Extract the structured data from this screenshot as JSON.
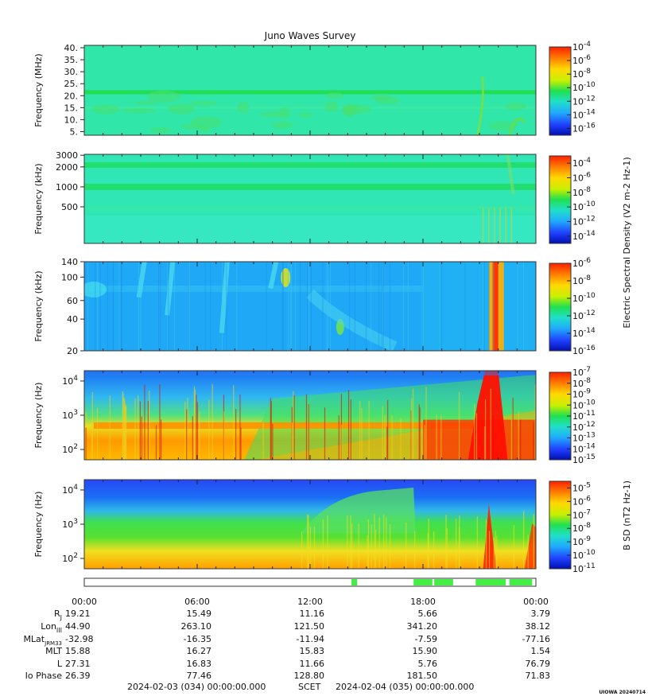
{
  "chart_data": {
    "type": "heatmap",
    "title": "Juno Waves Survey",
    "panels": [
      {
        "id": "p1",
        "ylabel": "Frequency (MHz)",
        "yscale": "linear",
        "yrange": [
          3.5,
          41
        ],
        "yticks": [
          "40.",
          "35.",
          "30.",
          "25.",
          "20.",
          "15.",
          "10.",
          "5."
        ],
        "ytick_values": [
          40,
          35,
          30,
          25,
          20,
          15,
          10,
          5
        ],
        "colorbar_labels": [
          "10-4",
          "10-6",
          "10-8",
          "10-10",
          "10-12",
          "10-14",
          "10-16"
        ],
        "colorbar_range_log10": [
          -4,
          -17
        ]
      },
      {
        "id": "p2",
        "ylabel": "Frequency (kHz)",
        "yscale": "log",
        "yrange": [
          140,
          3100
        ],
        "yticks": [
          "3000",
          "2000",
          "1000",
          "500"
        ],
        "ytick_values": [
          3000,
          2000,
          1000,
          500
        ],
        "colorbar_labels": [
          "10-4",
          "10-6",
          "10-8",
          "10-10",
          "10-12",
          "10-14"
        ],
        "colorbar_range_log10": [
          -3,
          -15
        ]
      },
      {
        "id": "p3",
        "ylabel": "Frequency (kHz)",
        "yscale": "log",
        "yrange": [
          20,
          140
        ],
        "yticks": [
          "140",
          "100",
          "60",
          "40",
          "20"
        ],
        "ytick_values": [
          140,
          100,
          60,
          40,
          20
        ],
        "colorbar_labels": [
          "10-6",
          "10-8",
          "10-10",
          "10-12",
          "10-14",
          "10-16"
        ],
        "colorbar_range_log10": [
          -6,
          -16
        ]
      },
      {
        "id": "p4",
        "ylabel": "Frequency (Hz)",
        "yscale": "log",
        "yrange": [
          50,
          20000
        ],
        "yticks": [
          "10^4",
          "10^3",
          "10^2"
        ],
        "ytick_values": [
          10000,
          1000,
          100
        ],
        "colorbar_labels": [
          "10-7",
          "10-8",
          "10-9",
          "10-10",
          "10-11",
          "10-12",
          "10-13",
          "10-14",
          "10-15"
        ],
        "colorbar_range_log10": [
          -7,
          -15
        ]
      },
      {
        "id": "p5",
        "ylabel": "Frequency (Hz)",
        "yscale": "log",
        "yrange": [
          50,
          20000
        ],
        "yticks": [
          "10^4",
          "10^3",
          "10^2"
        ],
        "ytick_values": [
          10000,
          1000,
          100
        ],
        "colorbar_labels": [
          "10-5",
          "10-6",
          "10-7",
          "10-8",
          "10-9",
          "10-10",
          "10-11"
        ],
        "colorbar_range_log10": [
          -4.5,
          -11
        ]
      }
    ],
    "colorbar_title_efield": "Electric Spectral Density (V2 m-2 Hz-1)",
    "colorbar_title_bfield": "B SD (nT2 Hz-1)",
    "x_axis": {
      "start": "2024-02-03 (034) 00:00:00.000",
      "end": "2024-02-04 (035) 00:00:00.000",
      "time_label": "SCET",
      "ticks": [
        "00:00",
        "06:00",
        "12:00",
        "18:00",
        "00:00"
      ]
    },
    "ephemeris": {
      "rows": [
        {
          "label": "RJ",
          "values": [
            "19.21",
            "15.49",
            "11.16",
            "5.66",
            "3.79"
          ]
        },
        {
          "label": "LonIII",
          "values": [
            "44.90",
            "263.10",
            "121.50",
            "341.20",
            "38.12"
          ]
        },
        {
          "label": "MLatJRM33",
          "values": [
            "-32.98",
            "-16.35",
            "-11.94",
            "-7.59",
            "-77.16"
          ]
        },
        {
          "label": "MLT",
          "values": [
            "15.88",
            "16.27",
            "15.83",
            "15.90",
            "1.54"
          ]
        },
        {
          "label": "L",
          "values": [
            "27.31",
            "16.83",
            "11.66",
            "5.76",
            "76.79"
          ]
        },
        {
          "label": "Io Phase",
          "values": [
            "26.39",
            "77.46",
            "128.80",
            "181.50",
            "71.83"
          ]
        }
      ]
    },
    "mode_bar_segments_hours": [
      [
        14.2,
        14.5
      ],
      [
        17.5,
        18.5
      ],
      [
        18.6,
        19.6
      ],
      [
        20.8,
        22.4
      ],
      [
        22.6,
        23.8
      ]
    ],
    "footer_tag": "UIOWA 20240714"
  }
}
